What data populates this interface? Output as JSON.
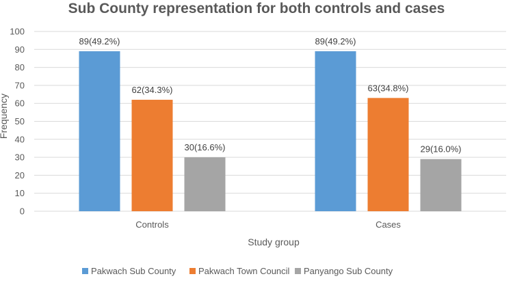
{
  "chart_data": {
    "type": "bar",
    "title": "Sub County representation for both controls and cases",
    "xlabel": "Study group",
    "ylabel": "Frequency",
    "ylim": [
      0,
      100
    ],
    "ytick_step": 10,
    "yticks": [
      "0",
      "10",
      "20",
      "30",
      "40",
      "50",
      "60",
      "70",
      "80",
      "90",
      "100"
    ],
    "grid": true,
    "legend_position": "bottom",
    "categories": [
      "Controls",
      "Cases"
    ],
    "series": [
      {
        "name": "Pakwach Sub County",
        "color": "#5B9BD5",
        "values": [
          89,
          89
        ],
        "labels": [
          "89(49.2%)",
          "89(49.2%)"
        ]
      },
      {
        "name": "Pakwach Town Council",
        "color": "#ED7D31",
        "values": [
          62,
          63
        ],
        "labels": [
          "62(34.3%)",
          "63(34.8%)"
        ]
      },
      {
        "name": "Panyango Sub County",
        "color": "#A5A5A5",
        "values": [
          30,
          29
        ],
        "labels": [
          "30(16.6%)",
          "29(16.0%)"
        ]
      }
    ]
  }
}
